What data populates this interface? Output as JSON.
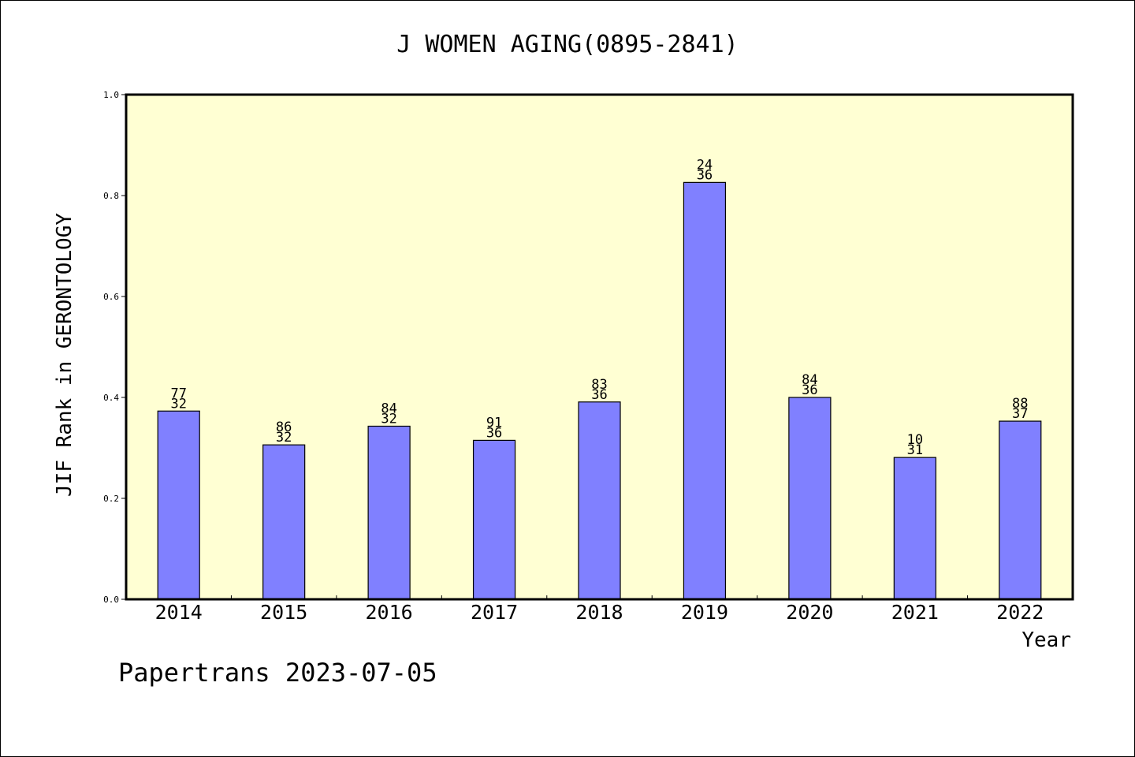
{
  "chart_data": {
    "type": "bar",
    "title": "J WOMEN AGING(0895-2841)",
    "xlabel": "Year",
    "ylabel": "JIF Rank in GERONTOLOGY",
    "ylim": [
      0.0,
      1.0
    ],
    "yticks": [
      "0.0",
      "0.2",
      "0.4",
      "0.6",
      "0.8",
      "1.0"
    ],
    "grid": false,
    "categories": [
      "2014",
      "2015",
      "2016",
      "2017",
      "2018",
      "2019",
      "2020",
      "2021",
      "2022"
    ],
    "values": [
      0.373,
      0.306,
      0.343,
      0.315,
      0.391,
      0.826,
      0.4,
      0.281,
      0.353
    ],
    "label_top": [
      "77",
      "86",
      "84",
      "91",
      "83",
      "24",
      "84",
      "10",
      "88"
    ],
    "label_bottom": [
      "32",
      "32",
      "32",
      "36",
      "36",
      "36",
      "36",
      "31",
      "37"
    ],
    "colors": {
      "plot_background": "#ffffd3",
      "bar_fill": "#8080ff",
      "bar_stroke": "#000000"
    }
  },
  "footer": {
    "watermark": "Papertrans 2023-07-05"
  }
}
